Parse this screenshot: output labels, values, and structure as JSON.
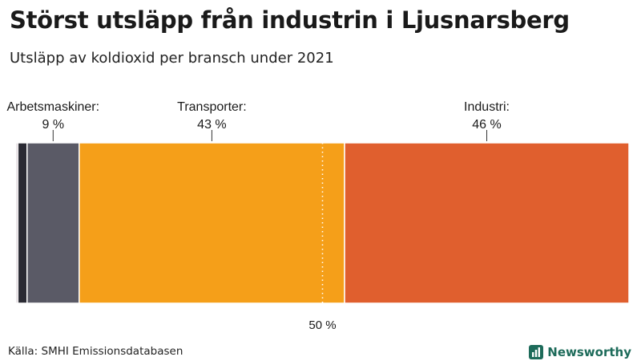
{
  "title": "Störst utsläpp från industrin i Ljusnarsberg",
  "subtitle": "Utsläpp av koldioxid per bransch under 2021",
  "source": "Källa: SMHI Emissionsdatabasen",
  "brand": {
    "name": "Newsworthy",
    "icon": "bar-chart-icon",
    "color": "#1d6b5a"
  },
  "chart_data": {
    "type": "bar",
    "orientation": "stacked-100-percent",
    "unit": "%",
    "reference_line": {
      "value": 50,
      "label": "50 %"
    },
    "segments": [
      {
        "name": "",
        "value": 0.3,
        "color": "#b9a9b3",
        "label": ""
      },
      {
        "name": "",
        "value": 1.5,
        "color": "#2a2a33",
        "label": ""
      },
      {
        "name": "Arbetsmaskiner:",
        "value": 8.5,
        "color": "#5a5a66",
        "label": "9 %"
      },
      {
        "name": "Transporter:",
        "value": 43.3,
        "color": "#f59f19",
        "label": "43 %"
      },
      {
        "name": "Industri:",
        "value": 46.4,
        "color": "#e05f2e",
        "label": "46 %"
      }
    ]
  }
}
